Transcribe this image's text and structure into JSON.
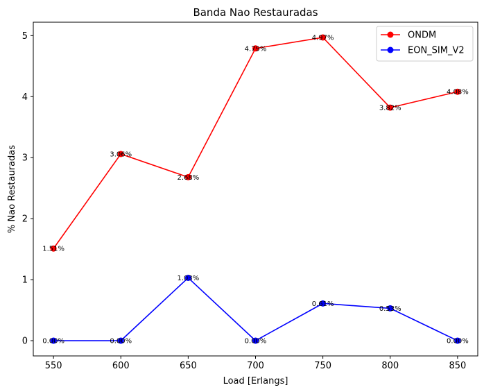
{
  "chart_data": {
    "type": "line",
    "title": "Banda Nao Restauradas",
    "xlabel": "Load [Erlangs]",
    "ylabel": "% Nao Restauradas",
    "x": [
      550,
      600,
      650,
      700,
      750,
      800,
      850
    ],
    "xlim": [
      535,
      865
    ],
    "ylim": [
      -0.25,
      5.22
    ],
    "xticks": [
      "550",
      "600",
      "650",
      "700",
      "750",
      "800",
      "850"
    ],
    "yticks": [
      "0",
      "1",
      "2",
      "3",
      "4",
      "5"
    ],
    "grid": false,
    "legend_position": "top-right",
    "series": [
      {
        "name": "ONDM",
        "color": "#ff0000",
        "values": [
          1.51,
          3.06,
          2.68,
          4.79,
          4.97,
          3.82,
          4.08
        ],
        "labels": [
          "1.51%",
          "3.06%",
          "2.68%",
          "4.79%",
          "4.97%",
          "3.82%",
          "4.08%"
        ]
      },
      {
        "name": "EON_SIM_V2",
        "color": "#0000ff",
        "values": [
          0.0,
          0.0,
          1.03,
          0.0,
          0.61,
          0.53,
          0.0
        ],
        "labels": [
          "0.00%",
          "0.00%",
          "1.03%",
          "0.00%",
          "0.61%",
          "0.53%",
          "0.00%"
        ]
      }
    ]
  }
}
